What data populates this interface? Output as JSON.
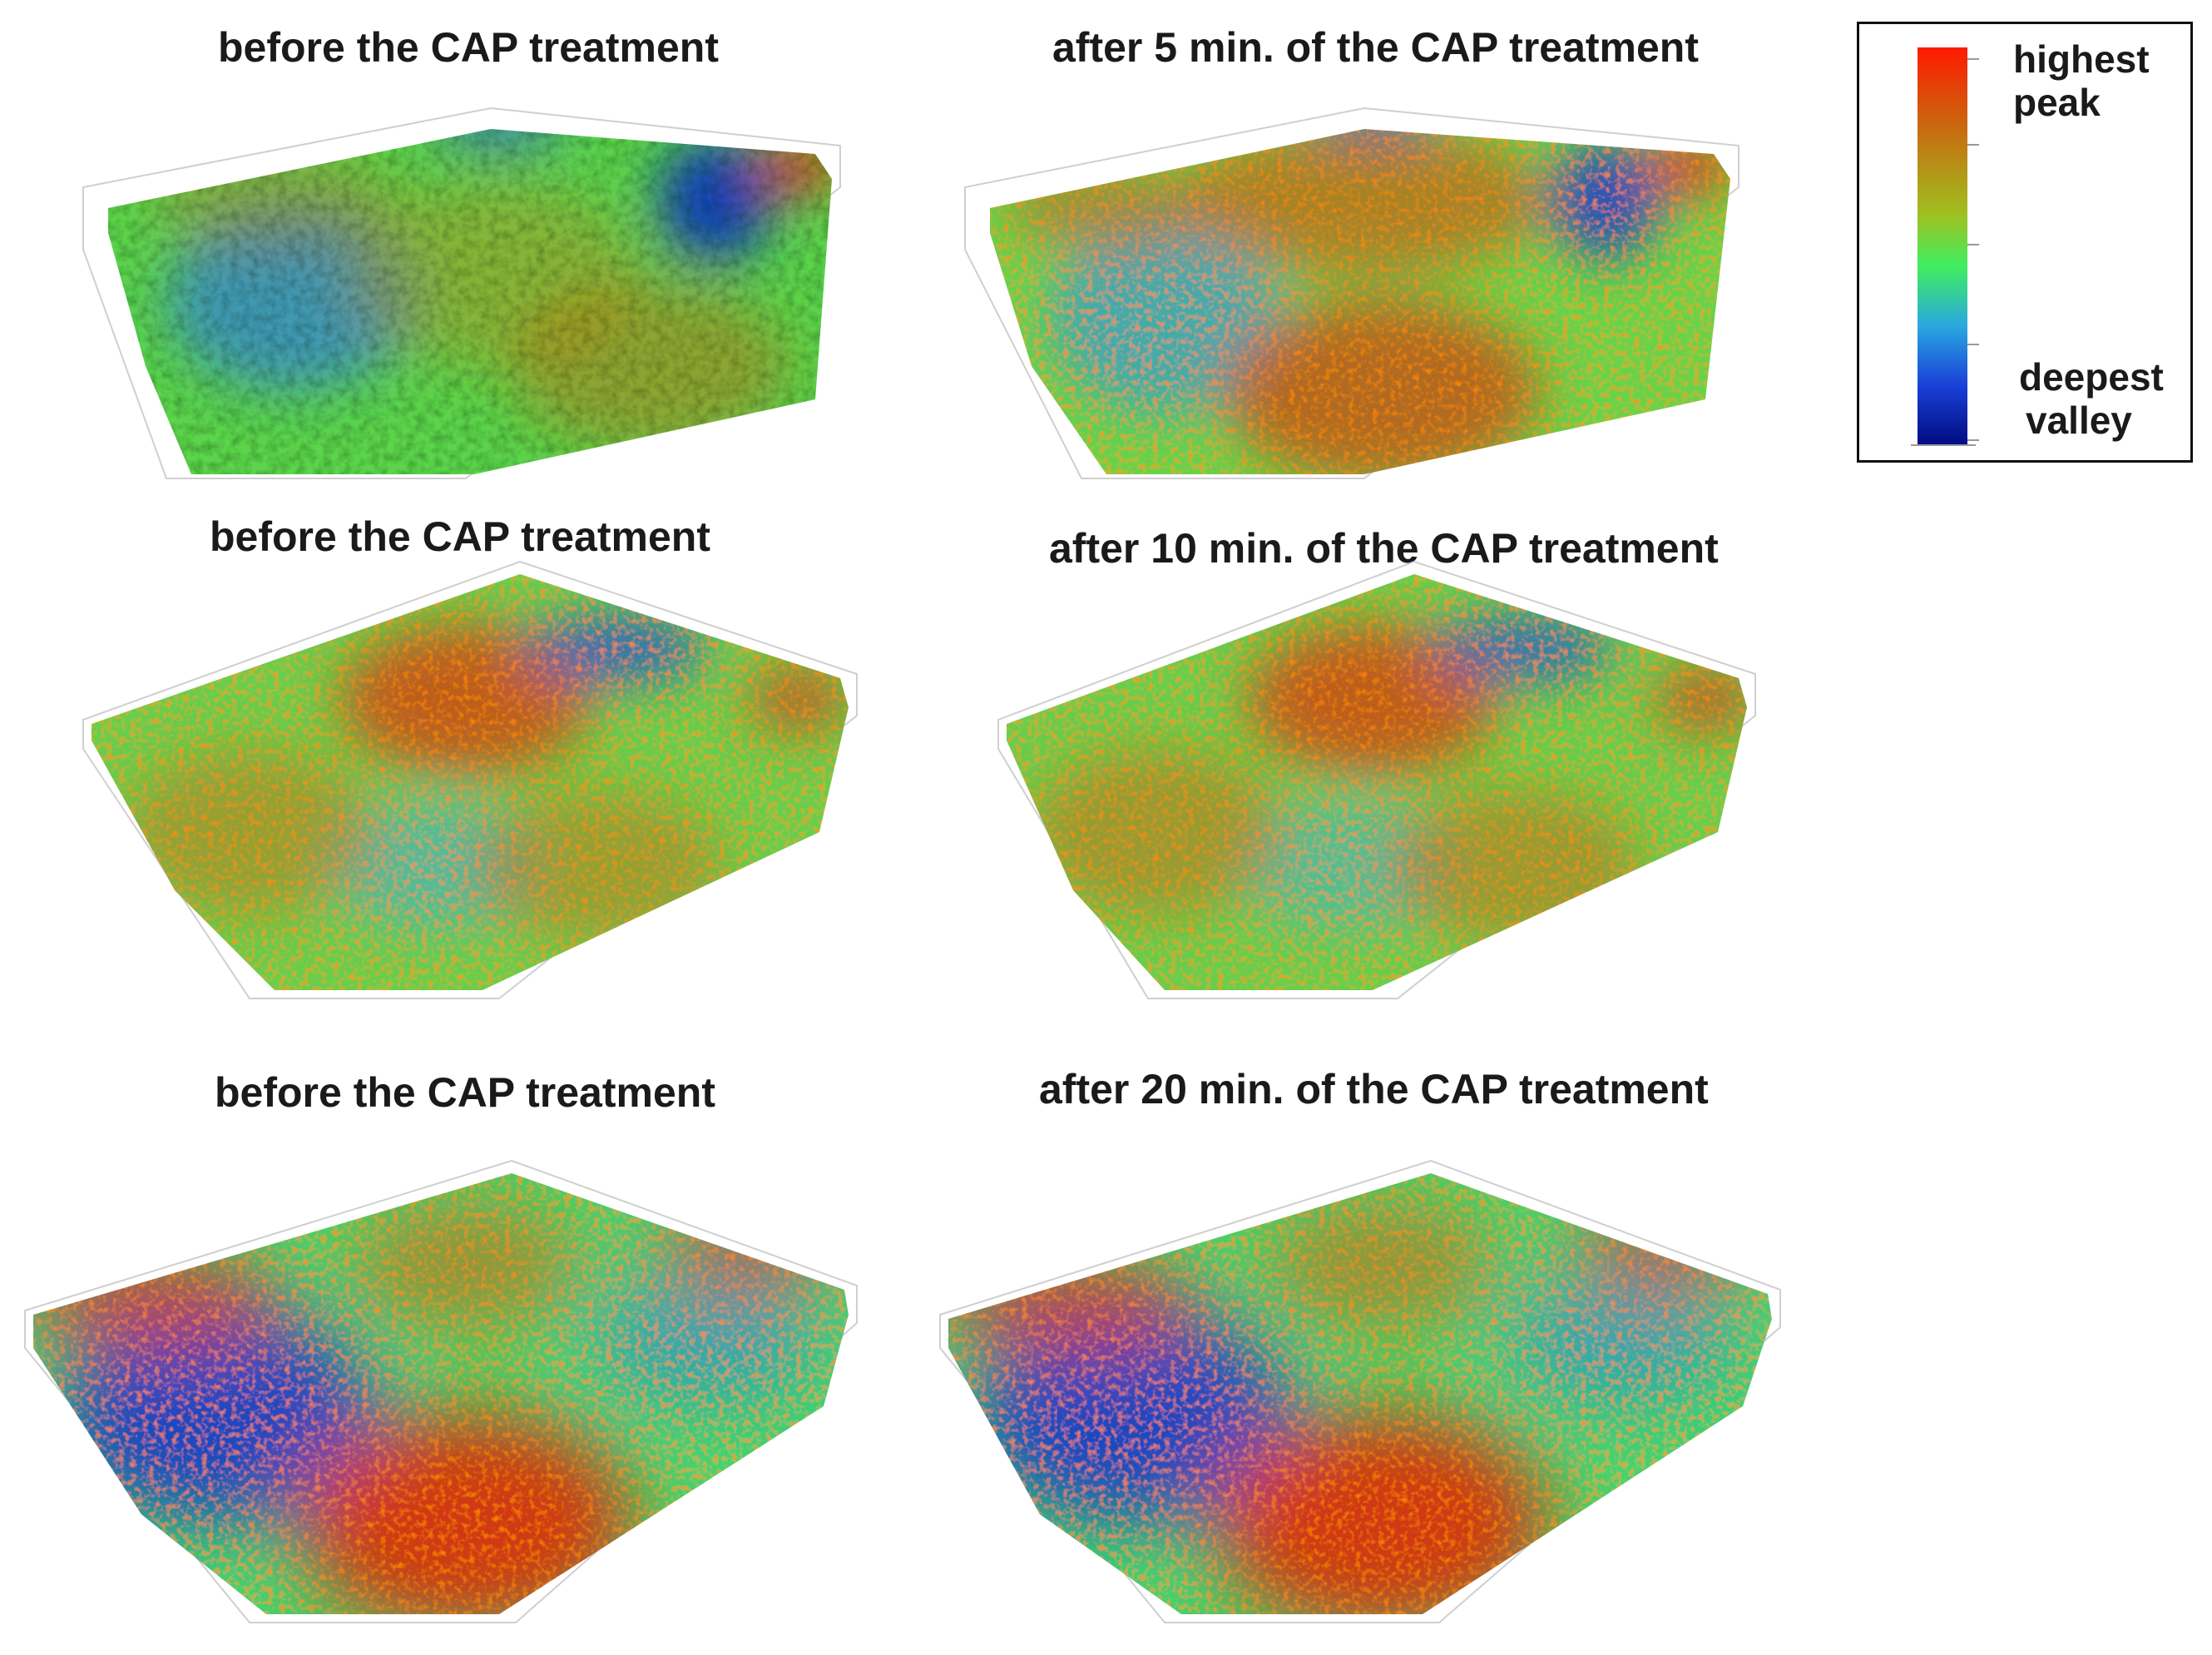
{
  "panels": [
    {
      "title": "before the CAP treatment"
    },
    {
      "title": "after 5 min. of the CAP treatment"
    },
    {
      "title": "before the CAP treatment"
    },
    {
      "title": "after 10 min. of the CAP treatment"
    },
    {
      "title": "before the CAP treatment"
    },
    {
      "title": "after 20 min. of the CAP treatment"
    }
  ],
  "legend": {
    "top_line1": "highest",
    "top_line2": "peak",
    "bottom_line1": "deepest",
    "bottom_line2": "valley",
    "colors": [
      "#ff1a00",
      "#c86a10",
      "#a0c020",
      "#40ee60",
      "#2aa8e0",
      "#1a40d8",
      "#000c80"
    ]
  }
}
